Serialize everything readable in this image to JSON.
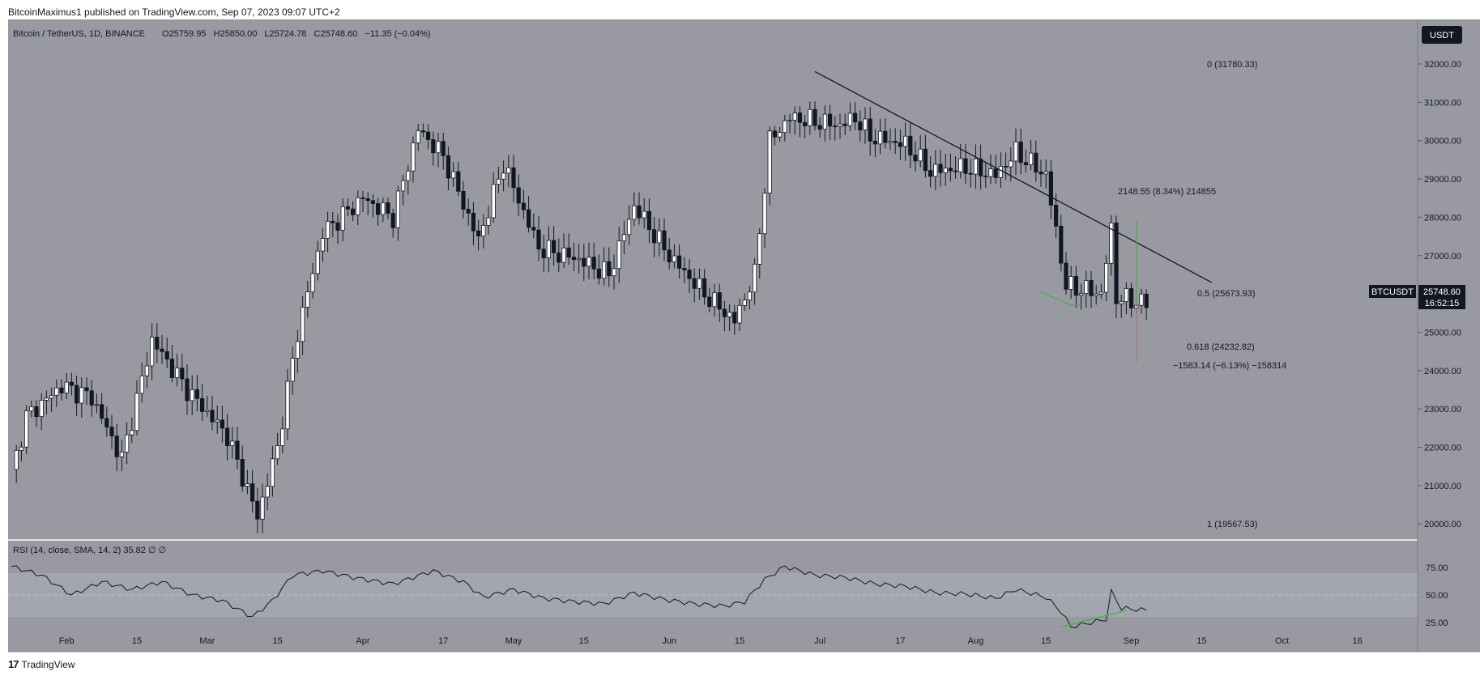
{
  "header": {
    "published": "BitcoinMaximus1 published on TradingView.com, Sep 07, 2023 09:07 UTC+2"
  },
  "footer": {
    "brand": "TradingView",
    "logo_text": "17"
  },
  "legend": {
    "symbol": "Bitcoin / TetherUS, 1D, BINANCE",
    "o_label": "O",
    "o_value": "25759.95",
    "h_label": "H",
    "h_value": "25850.00",
    "l_label": "L",
    "l_value": "25724.78",
    "c_label": "C",
    "c_value": "25748.60",
    "change": "−11.35 (−0.04%)"
  },
  "currency_badge": "USDT",
  "price_tag": {
    "symbol": "BTCUSDT",
    "price": "25748.60",
    "countdown": "16:52:15"
  },
  "annotations": {
    "fib_0": "0 (31780.33)",
    "fib_05": "0.5 (25673.93)",
    "fib_0618": "0.618 (24232.82)",
    "fib_1": "1 (19567.53)",
    "measure_up": "2148.55 (8.34%) 214855",
    "measure_down": "−1583.14 (−6.13%) −158314"
  },
  "rsi_legend": "RSI (14, close, SMA, 14, 2)  35.82  ∅  ∅",
  "colors": {
    "bg": "#999aa1",
    "up": "#ffffff",
    "down": "#131722",
    "trend": "#131722",
    "divergence": "#4caf50",
    "band": "#aeb0b6"
  },
  "chart_data": {
    "type": "candlestick",
    "y_axis": {
      "ticks": [
        32000,
        31000,
        30000,
        29000,
        28000,
        27000,
        26000,
        25000,
        24000,
        23000,
        22000,
        21000,
        20000
      ],
      "labels": [
        "32000.00",
        "31000.00",
        "30000.00",
        "29000.00",
        "28000.00",
        "27000.00",
        "26000.00",
        "25000.00",
        "24000.00",
        "23000.00",
        "22000.00",
        "21000.00",
        "20000.00"
      ]
    },
    "x_axis": {
      "labels": [
        "Feb",
        "15",
        "Mar",
        "15",
        "Apr",
        "17",
        "May",
        "15",
        "Jun",
        "15",
        "Jul",
        "17",
        "Aug",
        "15",
        "Sep",
        "15",
        "Oct",
        "16"
      ],
      "positions_day": [
        11,
        25,
        39,
        53,
        70,
        86,
        100,
        114,
        131,
        145,
        161,
        177,
        192,
        206,
        223,
        237,
        253,
        268
      ]
    },
    "rsi_axis": {
      "ticks": [
        75,
        50,
        25
      ],
      "labels": [
        "75.00",
        "50.00",
        "25.00"
      ],
      "band": [
        30,
        70
      ]
    },
    "key_points": [
      {
        "day": 0,
        "price": 21300
      },
      {
        "day": 3,
        "price": 22800
      },
      {
        "day": 10,
        "price": 23600
      },
      {
        "day": 16,
        "price": 23300
      },
      {
        "day": 22,
        "price": 21700
      },
      {
        "day": 28,
        "price": 24800
      },
      {
        "day": 35,
        "price": 23500
      },
      {
        "day": 43,
        "price": 22300
      },
      {
        "day": 49,
        "price": 20200
      },
      {
        "day": 53,
        "price": 22000
      },
      {
        "day": 57,
        "price": 25000
      },
      {
        "day": 62,
        "price": 27600
      },
      {
        "day": 70,
        "price": 28500
      },
      {
        "day": 76,
        "price": 28000
      },
      {
        "day": 81,
        "price": 30300
      },
      {
        "day": 86,
        "price": 29600
      },
      {
        "day": 93,
        "price": 27400
      },
      {
        "day": 98,
        "price": 29400
      },
      {
        "day": 105,
        "price": 27200
      },
      {
        "day": 113,
        "price": 26900
      },
      {
        "day": 119,
        "price": 26500
      },
      {
        "day": 124,
        "price": 28300
      },
      {
        "day": 131,
        "price": 27000
      },
      {
        "day": 138,
        "price": 26000
      },
      {
        "day": 144,
        "price": 25300
      },
      {
        "day": 148,
        "price": 26500
      },
      {
        "day": 151,
        "price": 30000
      },
      {
        "day": 155,
        "price": 30600
      },
      {
        "day": 160,
        "price": 30500
      },
      {
        "day": 165,
        "price": 30400
      },
      {
        "day": 168,
        "price": 30600
      },
      {
        "day": 171,
        "price": 30100
      },
      {
        "day": 178,
        "price": 29900
      },
      {
        "day": 183,
        "price": 29200
      },
      {
        "day": 190,
        "price": 29300
      },
      {
        "day": 196,
        "price": 29100
      },
      {
        "day": 200,
        "price": 29700
      },
      {
        "day": 206,
        "price": 29100
      },
      {
        "day": 210,
        "price": 26200
      },
      {
        "day": 214,
        "price": 26100
      },
      {
        "day": 217,
        "price": 26000
      },
      {
        "day": 219,
        "price": 27700
      },
      {
        "day": 220,
        "price": 25900
      },
      {
        "day": 226,
        "price": 25750
      }
    ],
    "rsi_points": [
      {
        "day": 0,
        "rsi": 76
      },
      {
        "day": 6,
        "rsi": 68
      },
      {
        "day": 12,
        "rsi": 50
      },
      {
        "day": 18,
        "rsi": 62
      },
      {
        "day": 24,
        "rsi": 55
      },
      {
        "day": 30,
        "rsi": 62
      },
      {
        "day": 36,
        "rsi": 50
      },
      {
        "day": 42,
        "rsi": 45
      },
      {
        "day": 48,
        "rsi": 30
      },
      {
        "day": 52,
        "rsi": 45
      },
      {
        "day": 56,
        "rsi": 68
      },
      {
        "day": 62,
        "rsi": 72
      },
      {
        "day": 68,
        "rsi": 66
      },
      {
        "day": 76,
        "rsi": 60
      },
      {
        "day": 84,
        "rsi": 72
      },
      {
        "day": 90,
        "rsi": 62
      },
      {
        "day": 94,
        "rsi": 48
      },
      {
        "day": 100,
        "rsi": 55
      },
      {
        "day": 106,
        "rsi": 47
      },
      {
        "day": 112,
        "rsi": 44
      },
      {
        "day": 118,
        "rsi": 42
      },
      {
        "day": 124,
        "rsi": 52
      },
      {
        "day": 130,
        "rsi": 46
      },
      {
        "day": 136,
        "rsi": 42
      },
      {
        "day": 142,
        "rsi": 40
      },
      {
        "day": 146,
        "rsi": 44
      },
      {
        "day": 150,
        "rsi": 64
      },
      {
        "day": 154,
        "rsi": 76
      },
      {
        "day": 160,
        "rsi": 68
      },
      {
        "day": 166,
        "rsi": 66
      },
      {
        "day": 172,
        "rsi": 60
      },
      {
        "day": 178,
        "rsi": 58
      },
      {
        "day": 184,
        "rsi": 52
      },
      {
        "day": 190,
        "rsi": 51
      },
      {
        "day": 196,
        "rsi": 47
      },
      {
        "day": 200,
        "rsi": 55
      },
      {
        "day": 206,
        "rsi": 48
      },
      {
        "day": 209,
        "rsi": 35
      },
      {
        "day": 211,
        "rsi": 21
      },
      {
        "day": 214,
        "rsi": 24
      },
      {
        "day": 218,
        "rsi": 28
      },
      {
        "day": 219,
        "rsi": 53
      },
      {
        "day": 221,
        "rsi": 38
      },
      {
        "day": 226,
        "rsi": 36
      }
    ],
    "trendline": [
      {
        "day": 160,
        "price": 31800
      },
      {
        "day": 239,
        "price": 26300
      }
    ],
    "measure_up_line": {
      "day": 224,
      "from": 25750,
      "to": 27900
    },
    "measure_down_line": {
      "day": 224,
      "from": 25750,
      "to": 24200
    },
    "divergence_price": [
      {
        "day": 205,
        "price": 26050
      },
      {
        "day": 211,
        "price": 25700
      },
      {
        "day": 213,
        "price": 25700
      }
    ],
    "divergence_rsi": [
      {
        "day": 209,
        "rsi": 21
      },
      {
        "day": 222,
        "rsi": 36
      }
    ]
  }
}
